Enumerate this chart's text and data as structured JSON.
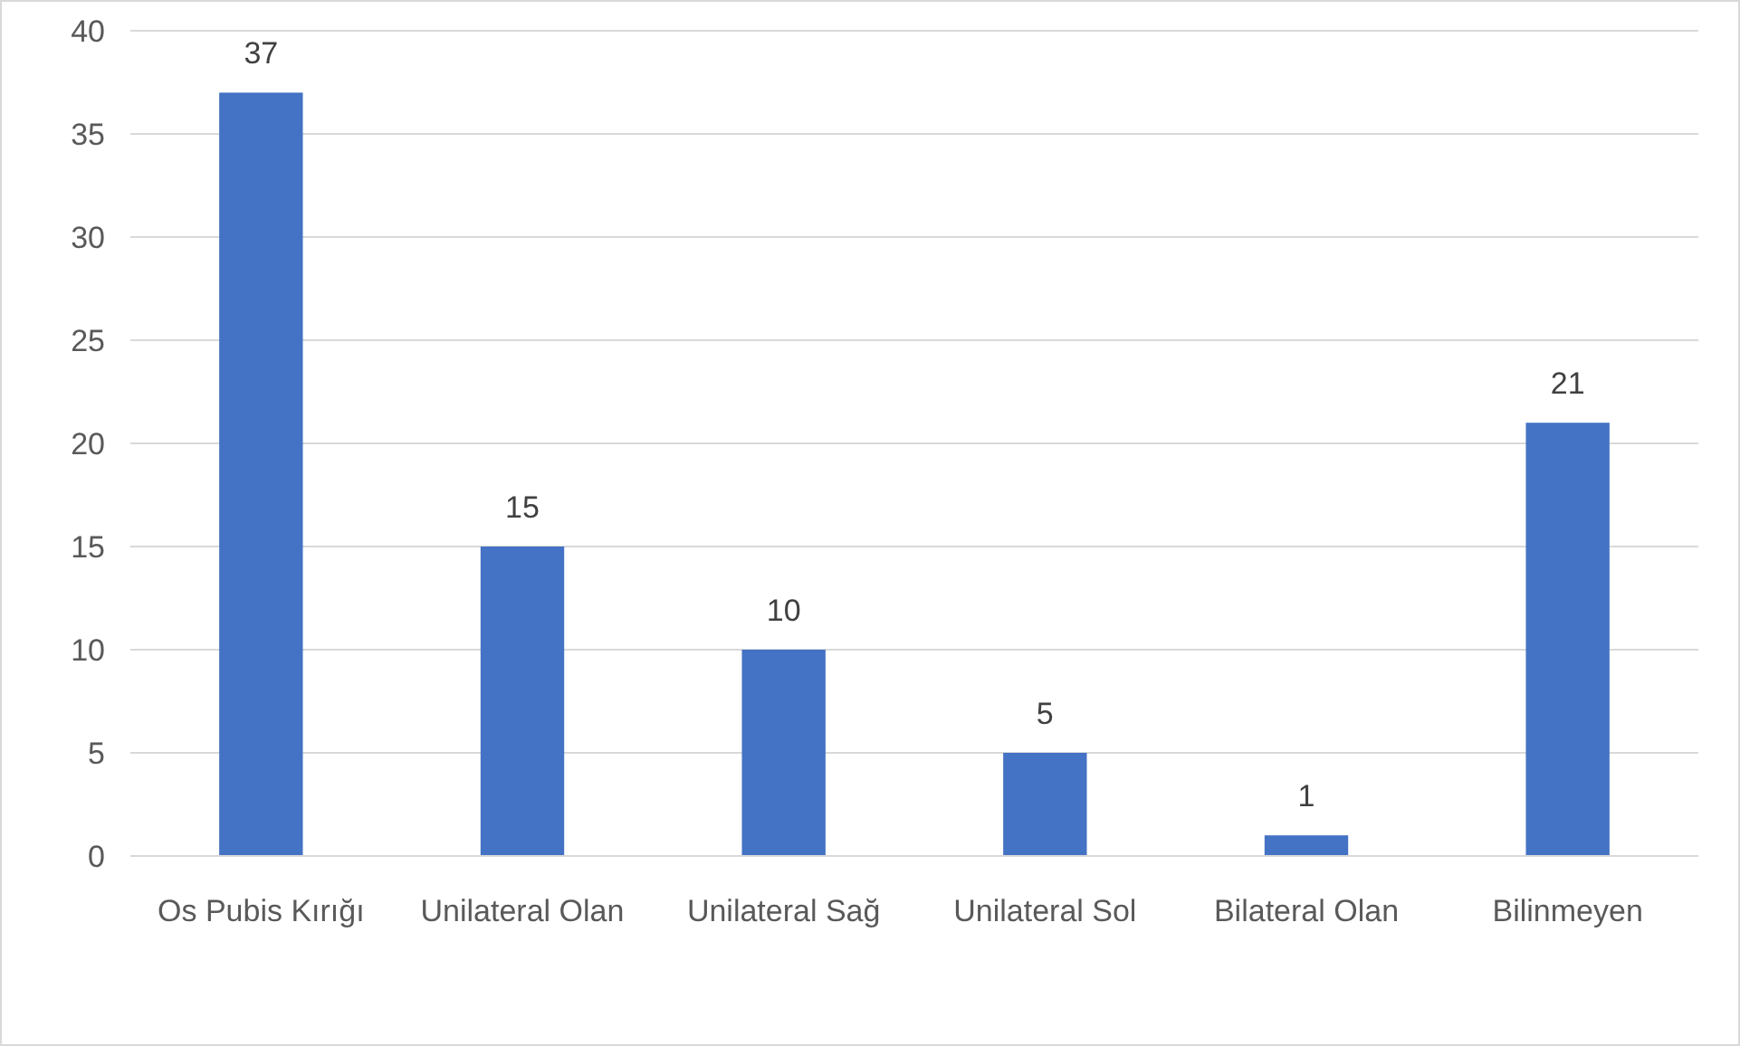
{
  "chart_data": {
    "type": "bar",
    "categories": [
      "Os Pubis Kırığı",
      "Unilateral Olan",
      "Unilateral Sağ",
      "Unilateral Sol",
      "Bilateral Olan",
      "Bilinmeyen"
    ],
    "values": [
      37,
      15,
      10,
      5,
      1,
      21
    ],
    "color": "#4472c4",
    "ylim": [
      0,
      40
    ],
    "yticks": [
      0,
      5,
      10,
      15,
      20,
      25,
      30,
      35,
      40
    ],
    "grid": "y",
    "data_labels": true
  }
}
